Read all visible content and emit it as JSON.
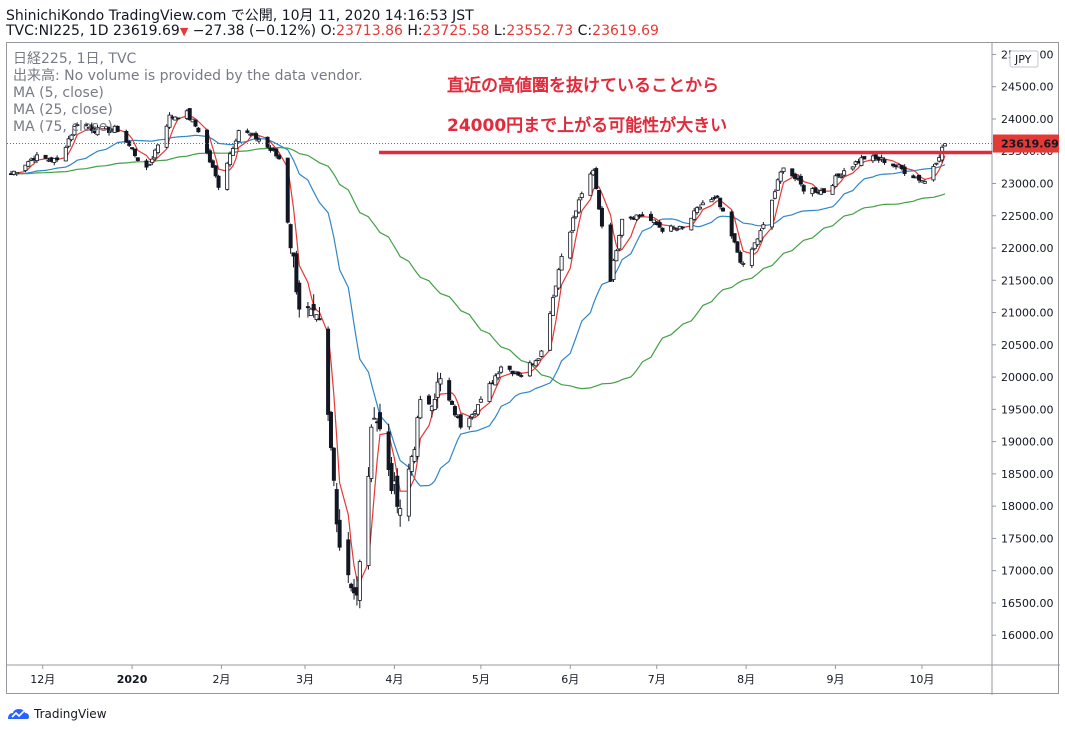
{
  "header": {
    "line1": "ShinichiKondo TradingView.com で公開, 10月 11, 2020 14:16:53 JST",
    "symbol": "TVC:NI225, 1D",
    "last": "23619.69",
    "change": "−27.38 (−0.12%)",
    "o_label": "O:",
    "o": "23713.86",
    "h_label": "H:",
    "h": "23725.58",
    "l_label": "L:",
    "l": "23552.73",
    "c_label": "C:",
    "c": "23619.69"
  },
  "legend": {
    "title": "日経225, 1日, TVC",
    "volume": "出来高: No volume is provided by the data vendor.",
    "ma5": "MA (5, close)",
    "ma25": "MA (25, close)",
    "ma75": "MA (75, close)"
  },
  "annotation": {
    "line1": "直近の高値圏を抜けていることから",
    "line2": "24000円まで上がる可能性が大きい",
    "resistance_level": 23480,
    "color": "#e02b3c"
  },
  "footer": {
    "brand": "TradingView"
  },
  "colors": {
    "ma5": "#e53935",
    "ma25": "#2f87c8",
    "ma75": "#43a047",
    "candle": "#131722",
    "price_tag": "#e53935"
  },
  "chart_data": {
    "type": "candlestick",
    "currency": "JPY",
    "last_price": "23619.69",
    "ylim": [
      15600,
      25100
    ],
    "y_ticks": [
      "25000.00",
      "24500.00",
      "24000.00",
      "23500.00",
      "23000.00",
      "22500.00",
      "22000.00",
      "21500.00",
      "21000.00",
      "20500.00",
      "20000.00",
      "19500.00",
      "19000.00",
      "18500.00",
      "18000.00",
      "17500.00",
      "17000.00",
      "16500.00",
      "16000.00"
    ],
    "x_ticks": [
      {
        "label": "12月",
        "date": "2019-12-01"
      },
      {
        "label": "2020",
        "date": "2020-01-01"
      },
      {
        "label": "2月",
        "date": "2020-02-01"
      },
      {
        "label": "3月",
        "date": "2020-03-01"
      },
      {
        "label": "4月",
        "date": "2020-04-01"
      },
      {
        "label": "5月",
        "date": "2020-05-01"
      },
      {
        "label": "6月",
        "date": "2020-06-01"
      },
      {
        "label": "7月",
        "date": "2020-07-01"
      },
      {
        "label": "8月",
        "date": "2020-08-01"
      },
      {
        "label": "9月",
        "date": "2020-09-01"
      },
      {
        "label": "10月",
        "date": "2020-10-01"
      }
    ],
    "date_range": [
      "2019-11-20",
      "2020-10-09"
    ],
    "close_anchors": [
      [
        "2019-11-20",
        23150
      ],
      [
        "2019-11-28",
        23410
      ],
      [
        "2019-12-06",
        23350
      ],
      [
        "2019-12-13",
        23950
      ],
      [
        "2019-12-20",
        23820
      ],
      [
        "2019-12-27",
        23840
      ],
      [
        "2020-01-06",
        23200
      ],
      [
        "2020-01-14",
        24030
      ],
      [
        "2020-01-20",
        24080
      ],
      [
        "2020-01-24",
        23830
      ],
      [
        "2020-01-31",
        22980
      ],
      [
        "2020-02-07",
        23830
      ],
      [
        "2020-02-14",
        23690
      ],
      [
        "2020-02-21",
        23390
      ],
      [
        "2020-02-28",
        21140
      ],
      [
        "2020-03-06",
        20750
      ],
      [
        "2020-03-13",
        17430
      ],
      [
        "2020-03-19",
        16550
      ],
      [
        "2020-03-25",
        19550
      ],
      [
        "2020-04-03",
        17820
      ],
      [
        "2020-04-10",
        19500
      ],
      [
        "2020-04-17",
        19900
      ],
      [
        "2020-04-24",
        19260
      ],
      [
        "2020-05-01",
        19620
      ],
      [
        "2020-05-08",
        20180
      ],
      [
        "2020-05-15",
        20040
      ],
      [
        "2020-05-22",
        20390
      ],
      [
        "2020-05-29",
        21880
      ],
      [
        "2020-06-05",
        22860
      ],
      [
        "2020-06-09",
        23180
      ],
      [
        "2020-06-15",
        21530
      ],
      [
        "2020-06-19",
        22480
      ],
      [
        "2020-06-26",
        22510
      ],
      [
        "2020-07-03",
        22300
      ],
      [
        "2020-07-10",
        22290
      ],
      [
        "2020-07-17",
        22700
      ],
      [
        "2020-07-22",
        22750
      ],
      [
        "2020-07-31",
        21710
      ],
      [
        "2020-08-07",
        22330
      ],
      [
        "2020-08-14",
        23290
      ],
      [
        "2020-08-21",
        22920
      ],
      [
        "2020-08-28",
        22880
      ],
      [
        "2020-09-04",
        23210
      ],
      [
        "2020-09-11",
        23400
      ],
      [
        "2020-09-18",
        23360
      ],
      [
        "2020-09-25",
        23200
      ],
      [
        "2020-10-02",
        23030
      ],
      [
        "2020-10-09",
        23619.69
      ]
    ]
  }
}
